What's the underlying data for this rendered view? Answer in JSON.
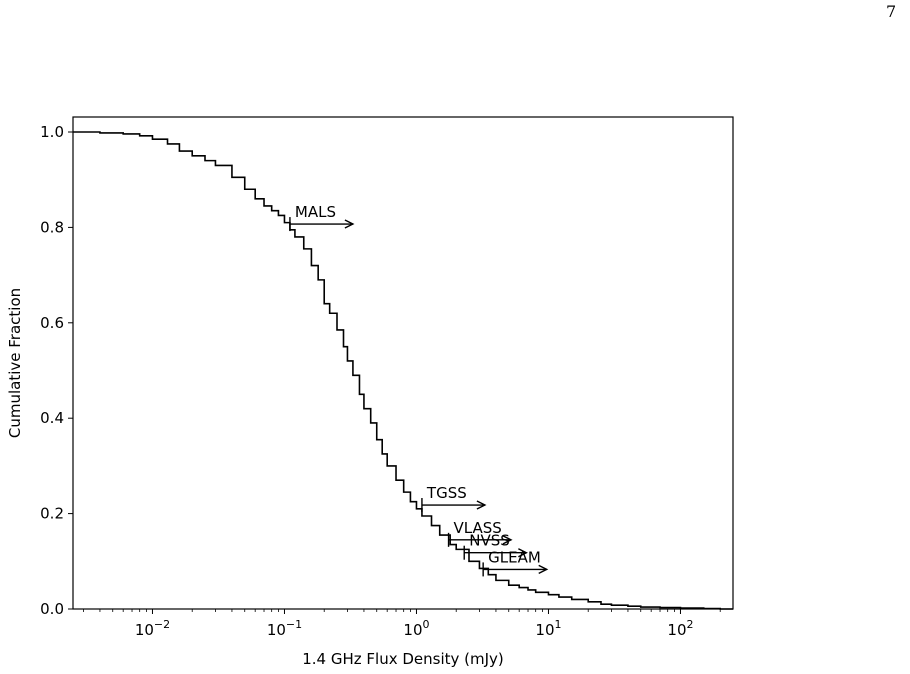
{
  "page": {
    "number": "7"
  },
  "chart_data": {
    "type": "line",
    "title": "",
    "xlabel": "1.4 GHz Flux Density (mJy)",
    "ylabel": "Cumulative Fraction",
    "xscale": "log",
    "xlim": [
      0.0025,
      250
    ],
    "ylim": [
      0,
      1.0
    ],
    "grid": false,
    "legend": "none",
    "x_ticks": [
      {
        "value": 0.01,
        "base": "10",
        "exp": "−2"
      },
      {
        "value": 0.1,
        "base": "10",
        "exp": "−1"
      },
      {
        "value": 1,
        "base": "10",
        "exp": "0"
      },
      {
        "value": 10,
        "base": "10",
        "exp": "1"
      },
      {
        "value": 100,
        "base": "10",
        "exp": "2"
      }
    ],
    "y_ticks": [
      {
        "value": 0.0,
        "label": "0.0"
      },
      {
        "value": 0.2,
        "label": "0.2"
      },
      {
        "value": 0.4,
        "label": "0.4"
      },
      {
        "value": 0.6,
        "label": "0.6"
      },
      {
        "value": 0.8,
        "label": "0.8"
      },
      {
        "value": 1.0,
        "label": "1.0"
      }
    ],
    "series": [
      {
        "color": "#000000",
        "x": [
          0.0025,
          0.004,
          0.006,
          0.008,
          0.01,
          0.013,
          0.016,
          0.02,
          0.025,
          0.03,
          0.04,
          0.05,
          0.06,
          0.07,
          0.08,
          0.09,
          0.1,
          0.11,
          0.12,
          0.14,
          0.16,
          0.18,
          0.2,
          0.22,
          0.25,
          0.28,
          0.3,
          0.33,
          0.37,
          0.4,
          0.45,
          0.5,
          0.55,
          0.6,
          0.7,
          0.8,
          0.9,
          1.0,
          1.1,
          1.3,
          1.5,
          1.8,
          2.0,
          2.5,
          3.0,
          3.5,
          4.0,
          5.0,
          6.0,
          7.0,
          8.0,
          10.0,
          12.0,
          15.0,
          20.0,
          25.0,
          30.0,
          40.0,
          50.0,
          70.0,
          100.0,
          150.0,
          200.0,
          250.0
        ],
        "y": [
          1.0,
          0.998,
          0.996,
          0.992,
          0.985,
          0.975,
          0.96,
          0.95,
          0.94,
          0.93,
          0.905,
          0.88,
          0.86,
          0.845,
          0.835,
          0.825,
          0.81,
          0.795,
          0.78,
          0.755,
          0.72,
          0.69,
          0.64,
          0.62,
          0.585,
          0.55,
          0.52,
          0.49,
          0.45,
          0.42,
          0.39,
          0.355,
          0.325,
          0.3,
          0.27,
          0.245,
          0.225,
          0.21,
          0.195,
          0.175,
          0.155,
          0.135,
          0.125,
          0.1,
          0.085,
          0.072,
          0.06,
          0.05,
          0.045,
          0.04,
          0.035,
          0.03,
          0.025,
          0.02,
          0.015,
          0.01,
          0.008,
          0.006,
          0.004,
          0.003,
          0.002,
          0.001,
          0.0,
          0.0
        ]
      }
    ],
    "annotations": [
      {
        "label": "MALS",
        "x": 0.11,
        "x_end": 0.33,
        "y": 0.807
      },
      {
        "label": "TGSS",
        "x": 1.1,
        "x_end": 3.3,
        "y": 0.218
      },
      {
        "label": "VLASS",
        "x": 1.75,
        "x_end": 5.2,
        "y": 0.145
      },
      {
        "label": "NVSS",
        "x": 2.3,
        "x_end": 6.8,
        "y": 0.118
      },
      {
        "label": "GLEAM",
        "x": 3.2,
        "x_end": 9.7,
        "y": 0.083
      }
    ]
  }
}
